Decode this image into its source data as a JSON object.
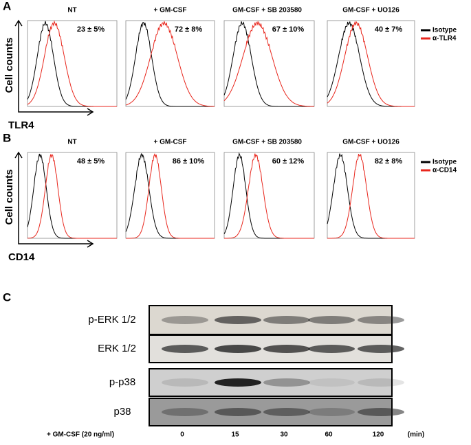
{
  "panels": [
    {
      "label": "A",
      "y_label": "Cell counts",
      "x_label": "TLR4",
      "plots": [
        {
          "title": "NT",
          "stat": "23 ± 5%"
        },
        {
          "title": "+ GM-CSF",
          "stat": "72 ± 8%"
        },
        {
          "title": "GM-CSF + SB 203580",
          "stat": "67 ± 10%"
        },
        {
          "title": "GM-CSF + UO126",
          "stat": "40 ± 7%"
        }
      ],
      "legend": [
        "Isotype",
        "α-TLR4"
      ]
    },
    {
      "label": "B",
      "y_label": "Cell counts",
      "x_label": "CD14",
      "plots": [
        {
          "title": "NT",
          "stat": "48 ± 5%"
        },
        {
          "title": "+ GM-CSF",
          "stat": "86 ± 10%"
        },
        {
          "title": "GM-CSF + SB 203580",
          "stat": "60 ± 12%"
        },
        {
          "title": "GM-CSF + UO126",
          "stat": "82 ± 8%"
        }
      ],
      "legend": [
        "Isotype",
        "α-CD14"
      ]
    }
  ],
  "blot": {
    "label": "C",
    "rows": [
      "p-ERK 1/2",
      "ERK 1/2",
      "p-p38",
      "p38"
    ],
    "treatment": "+ GM-CSF (20 ng/ml)",
    "lanes": [
      "0",
      "15",
      "30",
      "60",
      "120"
    ],
    "unit": "(min)"
  }
}
